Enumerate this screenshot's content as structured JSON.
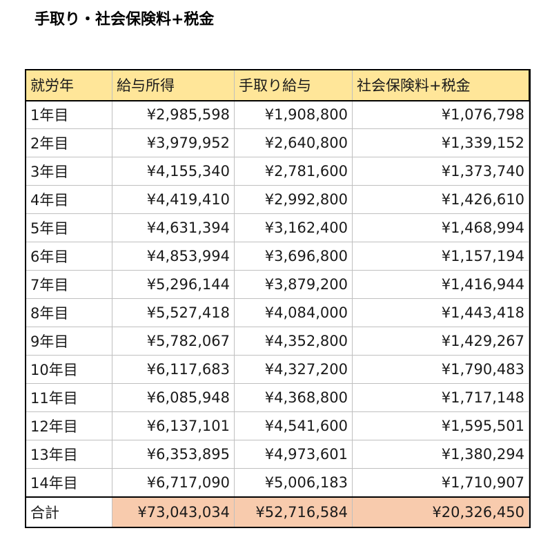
{
  "title": "手取り・社会保険料+税金",
  "colors": {
    "header_bg": "#ffe699",
    "total_highlight": "#f8cbad"
  },
  "table": {
    "headers": [
      "就労年",
      "給与所得",
      "手取り給与",
      "社会保険料+税金"
    ],
    "rows": [
      {
        "year": "1年目",
        "income": "¥2,985,598",
        "net": "¥1,908,800",
        "tax": "¥1,076,798"
      },
      {
        "year": "2年目",
        "income": "¥3,979,952",
        "net": "¥2,640,800",
        "tax": "¥1,339,152"
      },
      {
        "year": "3年目",
        "income": "¥4,155,340",
        "net": "¥2,781,600",
        "tax": "¥1,373,740"
      },
      {
        "year": "4年目",
        "income": "¥4,419,410",
        "net": "¥2,992,800",
        "tax": "¥1,426,610"
      },
      {
        "year": "5年目",
        "income": "¥4,631,394",
        "net": "¥3,162,400",
        "tax": "¥1,468,994"
      },
      {
        "year": "6年目",
        "income": "¥4,853,994",
        "net": "¥3,696,800",
        "tax": "¥1,157,194"
      },
      {
        "year": "7年目",
        "income": "¥5,296,144",
        "net": "¥3,879,200",
        "tax": "¥1,416,944"
      },
      {
        "year": "8年目",
        "income": "¥5,527,418",
        "net": "¥4,084,000",
        "tax": "¥1,443,418"
      },
      {
        "year": "9年目",
        "income": "¥5,782,067",
        "net": "¥4,352,800",
        "tax": "¥1,429,267"
      },
      {
        "year": "10年目",
        "income": "¥6,117,683",
        "net": "¥4,327,200",
        "tax": "¥1,790,483"
      },
      {
        "year": "11年目",
        "income": "¥6,085,948",
        "net": "¥4,368,800",
        "tax": "¥1,717,148"
      },
      {
        "year": "12年目",
        "income": "¥6,137,101",
        "net": "¥4,541,600",
        "tax": "¥1,595,501"
      },
      {
        "year": "13年目",
        "income": "¥6,353,895",
        "net": "¥4,973,601",
        "tax": "¥1,380,294"
      },
      {
        "year": "14年目",
        "income": "¥6,717,090",
        "net": "¥5,006,183",
        "tax": "¥1,710,907"
      }
    ],
    "total": {
      "label": "合計",
      "income": "¥73,043,034",
      "net": "¥52,716,584",
      "tax": "¥20,326,450"
    }
  }
}
